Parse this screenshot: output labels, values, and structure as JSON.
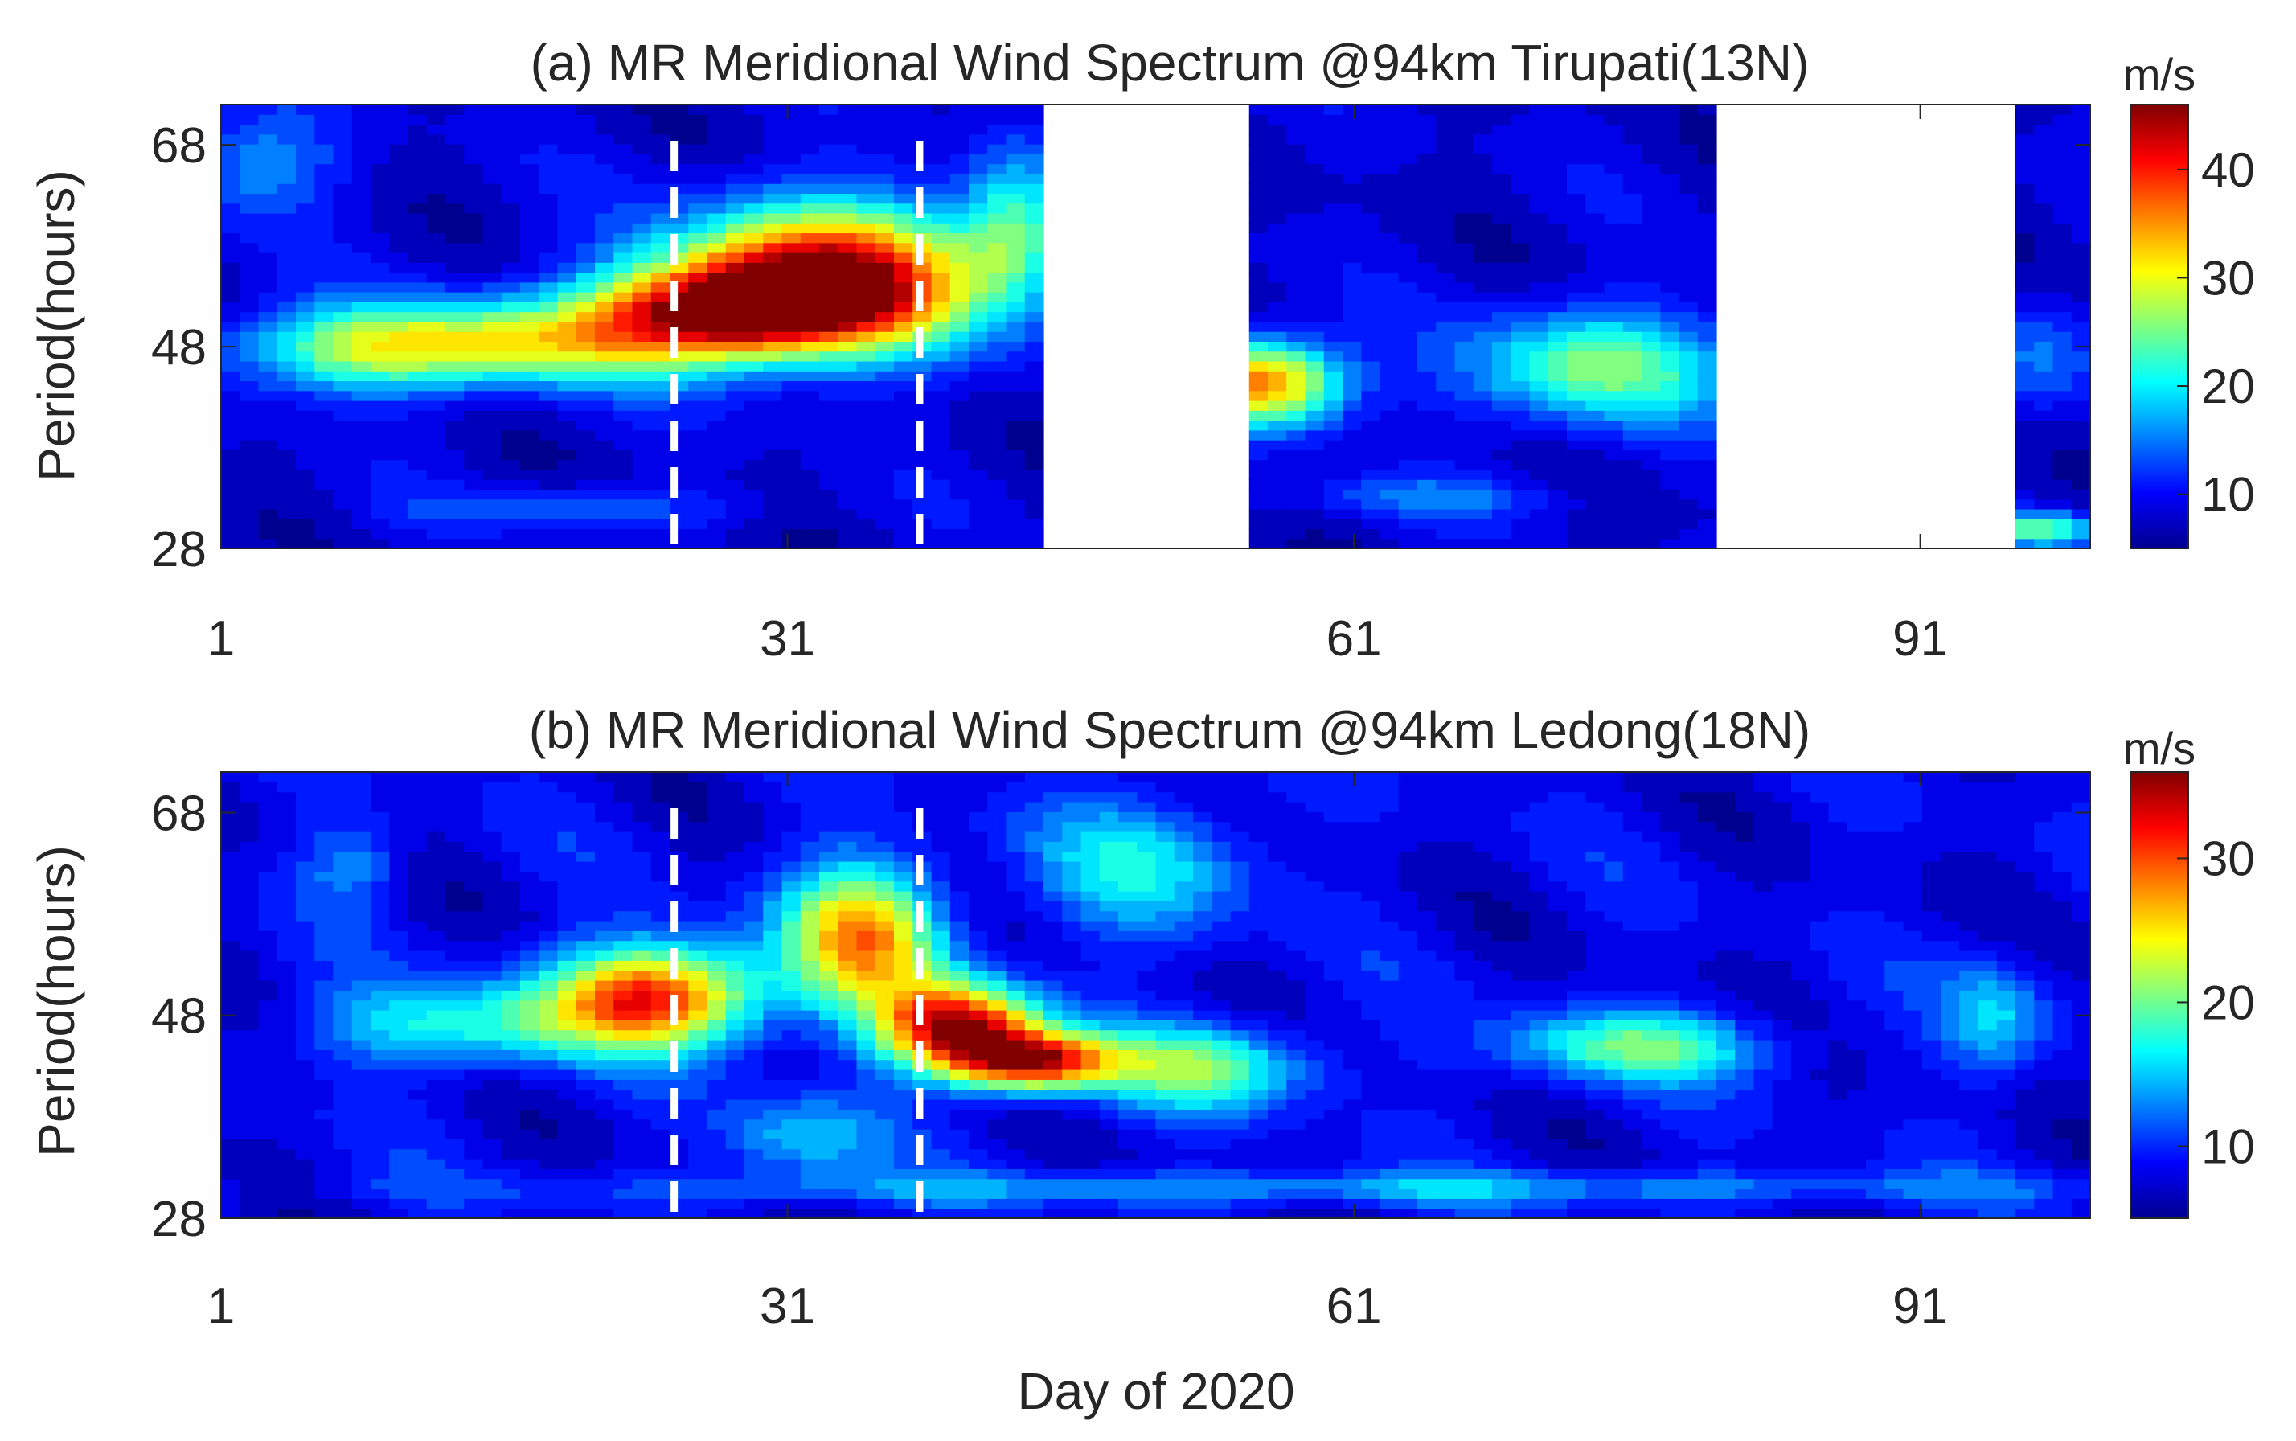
{
  "figure": {
    "xlabel": "Day of 2020"
  },
  "colormap": [
    "#00008f",
    "#0000ff",
    "#0080ff",
    "#00ffff",
    "#80ff80",
    "#ffff00",
    "#ff8000",
    "#ff0000",
    "#800000"
  ],
  "chart_data": [
    {
      "type": "heatmap",
      "panel": "a",
      "title": "(a) MR Meridional Wind Spectrum @94km Tirupati(13N)",
      "xlabel": "",
      "ylabel": "Period(hours)",
      "xlim": [
        1,
        100
      ],
      "ylim": [
        28,
        72
      ],
      "xticks": [
        1,
        31,
        61,
        91
      ],
      "yticks": [
        28,
        48,
        68
      ],
      "colorbar": {
        "unit": "m/s",
        "range": [
          5,
          46
        ],
        "ticks": [
          10,
          20,
          30,
          40
        ]
      },
      "background_level": 8,
      "data_gaps": [
        [
          45,
          55
        ],
        [
          80,
          96
        ]
      ],
      "markers": [
        25,
        38
      ],
      "features": [
        {
          "center_day": 33.5,
          "center_period": 55,
          "peak": 44,
          "spread_days": 6,
          "spread_hours": 5
        },
        {
          "center_day": 28,
          "center_period": 52,
          "peak": 36,
          "spread_days": 5,
          "spread_hours": 3
        },
        {
          "center_day": 18,
          "center_period": 48.5,
          "peak": 28,
          "spread_days": 8,
          "spread_hours": 3
        },
        {
          "center_day": 8,
          "center_period": 47.5,
          "peak": 20,
          "spread_days": 5,
          "spread_hours": 3
        },
        {
          "center_day": 56,
          "center_period": 44.5,
          "peak": 38,
          "spread_days": 3,
          "spread_hours": 3
        },
        {
          "center_day": 74,
          "center_period": 46,
          "peak": 25,
          "spread_days": 5,
          "spread_hours": 4
        },
        {
          "center_day": 43,
          "center_period": 60,
          "peak": 20,
          "spread_days": 2,
          "spread_hours": 5
        },
        {
          "center_day": 3,
          "center_period": 66,
          "peak": 16,
          "spread_days": 3,
          "spread_hours": 4
        },
        {
          "center_day": 97.5,
          "center_period": 30,
          "peak": 24,
          "spread_days": 2,
          "spread_hours": 1.2
        },
        {
          "center_day": 97.5,
          "center_period": 47,
          "peak": 15,
          "spread_days": 2,
          "spread_hours": 4
        },
        {
          "center_day": 20,
          "center_period": 32,
          "peak": 14,
          "spread_days": 6,
          "spread_hours": 1.5
        },
        {
          "center_day": 65,
          "center_period": 33,
          "peak": 14,
          "spread_days": 5,
          "spread_hours": 1.5
        }
      ]
    },
    {
      "type": "heatmap",
      "panel": "b",
      "title": "(b) MR Meridional Wind Spectrum @94km Ledong(18N)",
      "xlabel": "Day of 2020",
      "ylabel": "Period(hours)",
      "xlim": [
        1,
        100
      ],
      "ylim": [
        28,
        72
      ],
      "xticks": [
        1,
        31,
        61,
        91
      ],
      "yticks": [
        28,
        48,
        68
      ],
      "colorbar": {
        "unit": "m/s",
        "range": [
          5,
          36
        ],
        "ticks": [
          10,
          20,
          30
        ]
      },
      "background_level": 8,
      "data_gaps": [],
      "markers": [
        25,
        38
      ],
      "features": [
        {
          "center_day": 24,
          "center_period": 50,
          "peak": 31,
          "spread_days": 4,
          "spread_hours": 3.5
        },
        {
          "center_day": 40,
          "center_period": 47,
          "peak": 34,
          "spread_days": 3,
          "spread_hours": 3
        },
        {
          "center_day": 44,
          "center_period": 43.5,
          "peak": 33,
          "spread_days": 3,
          "spread_hours": 2
        },
        {
          "center_day": 35,
          "center_period": 56,
          "peak": 27,
          "spread_days": 3,
          "spread_hours": 5
        },
        {
          "center_day": 14,
          "center_period": 47,
          "peak": 17,
          "spread_days": 6,
          "spread_hours": 3
        },
        {
          "center_day": 53,
          "center_period": 43,
          "peak": 20,
          "spread_days": 4,
          "spread_hours": 3
        },
        {
          "center_day": 76,
          "center_period": 45,
          "peak": 19,
          "spread_days": 5,
          "spread_hours": 2.5
        },
        {
          "center_day": 50,
          "center_period": 63,
          "peak": 16,
          "spread_days": 4,
          "spread_hours": 5
        },
        {
          "center_day": 32,
          "center_period": 36,
          "peak": 15,
          "spread_days": 3,
          "spread_hours": 3
        },
        {
          "center_day": 8,
          "center_period": 63,
          "peak": 13,
          "spread_days": 2,
          "spread_hours": 3
        },
        {
          "center_day": 95,
          "center_period": 48,
          "peak": 15,
          "spread_days": 2,
          "spread_hours": 4
        },
        {
          "center_day": 60,
          "center_period": 31,
          "peak": 14,
          "spread_days": 30,
          "spread_hours": 1.2
        }
      ]
    }
  ]
}
